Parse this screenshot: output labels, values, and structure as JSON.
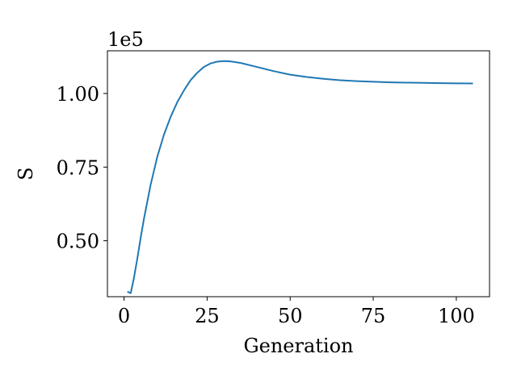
{
  "chart_data": {
    "type": "line",
    "title": "",
    "xlabel": "Generation",
    "ylabel": "S",
    "y_offset_label": "1e5",
    "xlim": [
      -5,
      110
    ],
    "ylim": [
      0.31,
      1.145
    ],
    "x_ticks": [
      0,
      25,
      50,
      75,
      100
    ],
    "x_tick_labels": [
      "0",
      "25",
      "50",
      "75",
      "100"
    ],
    "y_ticks": [
      0.5,
      0.75,
      1.0
    ],
    "y_tick_labels": [
      "0.50",
      "0.75",
      "1.00"
    ],
    "grid": false,
    "legend": "none",
    "series": [
      {
        "color": "#1f77b4",
        "x": [
          1,
          2,
          3,
          4,
          5,
          6,
          8,
          10,
          12,
          14,
          16,
          18,
          20,
          22,
          24,
          26,
          28,
          30,
          32,
          35,
          40,
          45,
          50,
          55,
          60,
          65,
          70,
          75,
          80,
          85,
          90,
          95,
          100,
          105
        ],
        "y": [
          0.327,
          0.322,
          0.375,
          0.44,
          0.51,
          0.575,
          0.69,
          0.785,
          0.86,
          0.92,
          0.97,
          1.01,
          1.045,
          1.07,
          1.09,
          1.102,
          1.108,
          1.11,
          1.109,
          1.104,
          1.09,
          1.076,
          1.064,
          1.056,
          1.05,
          1.045,
          1.042,
          1.04,
          1.038,
          1.037,
          1.036,
          1.035,
          1.0345,
          1.034
        ]
      }
    ]
  }
}
